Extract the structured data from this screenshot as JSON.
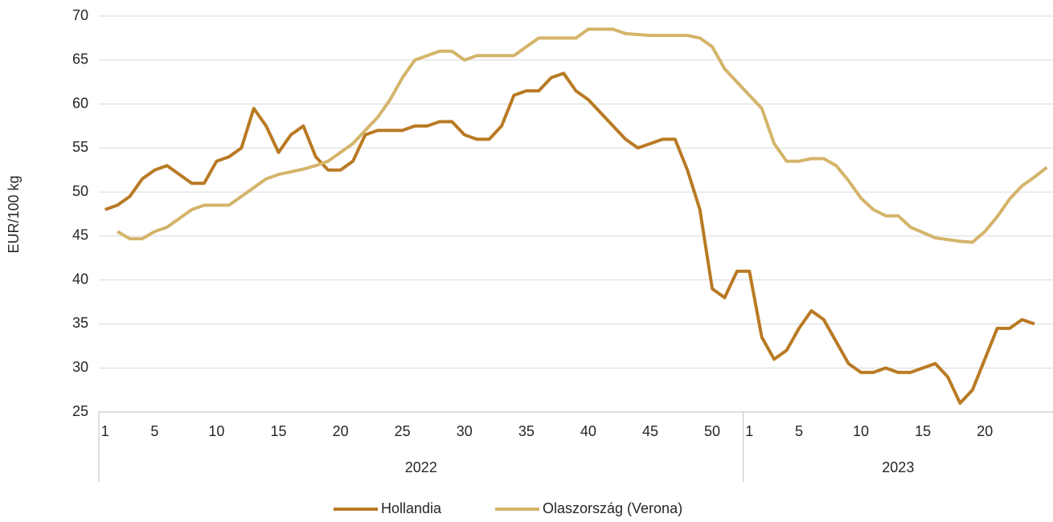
{
  "chart_data": {
    "type": "line",
    "y_label": "EUR/100 kg",
    "groups": [
      {
        "label": "2022",
        "categories": [
          "1",
          null,
          null,
          null,
          "5",
          null,
          null,
          null,
          null,
          "10",
          null,
          null,
          null,
          null,
          "15",
          null,
          null,
          null,
          null,
          "20",
          null,
          null,
          null,
          null,
          "25",
          null,
          null,
          null,
          null,
          "30",
          null,
          null,
          null,
          null,
          "35",
          null,
          null,
          null,
          null,
          "40",
          null,
          null,
          null,
          null,
          "45",
          null,
          null,
          null,
          null,
          "50",
          null,
          null
        ]
      },
      {
        "label": "2023",
        "categories": [
          "1",
          null,
          null,
          null,
          "5",
          null,
          null,
          null,
          null,
          "10",
          null,
          null,
          null,
          null,
          "15",
          null,
          null,
          null,
          null,
          "20",
          null,
          null,
          null,
          null,
          null
        ]
      }
    ],
    "series": [
      {
        "name": "Hollandia",
        "color": "#b97a24",
        "values": [
          48,
          48.5,
          49.5,
          51.5,
          52.5,
          53,
          52,
          51,
          51,
          53.5,
          54,
          55,
          59.5,
          57.5,
          54.5,
          56.5,
          57.5,
          54,
          52.5,
          52.5,
          53.5,
          56.5,
          57,
          57,
          57,
          57.5,
          57.5,
          58,
          58,
          56.5,
          56,
          56,
          57.5,
          61,
          61.5,
          61.5,
          63,
          63.5,
          61.5,
          60.5,
          59,
          57.5,
          56,
          55,
          55.5,
          56,
          56,
          52.5,
          48,
          39,
          38,
          41,
          41,
          33.5,
          31,
          32,
          34.5,
          36.5,
          35.5,
          33,
          30.5,
          29.5,
          29.5,
          30,
          29.5,
          29.5,
          30,
          30.5,
          29,
          26,
          27.5,
          31,
          34.5,
          34.5,
          35.5,
          35,
          null
        ]
      },
      {
        "name": "Olaszország (Verona)",
        "color": "#d4b46a",
        "values": [
          null,
          45.5,
          44.7,
          44.7,
          45.5,
          46,
          47,
          48,
          48.5,
          48.5,
          48.5,
          49.5,
          50.5,
          51.5,
          52,
          52.3,
          52.6,
          53,
          53.5,
          54.5,
          55.5,
          57,
          58.5,
          60.5,
          63,
          65,
          65.5,
          66,
          66,
          65,
          65.5,
          65.5,
          65.5,
          65.5,
          66.5,
          67.5,
          67.5,
          67.5,
          67.5,
          68.5,
          68.5,
          68.5,
          68,
          67.9,
          67.8,
          67.8,
          67.8,
          67.8,
          67.5,
          66.5,
          64,
          62.5,
          61,
          59.5,
          55.5,
          53.5,
          53.5,
          53.8,
          53.8,
          53,
          51.3,
          49.3,
          48,
          47.3,
          47.3,
          46,
          45.4,
          44.8,
          44.6,
          44.4,
          44.3,
          45.5,
          47.2,
          49.2,
          50.7,
          51.7,
          52.8
        ]
      }
    ],
    "ylim": [
      25,
      70
    ],
    "yticks": [
      25,
      30,
      35,
      40,
      45,
      50,
      55,
      60,
      65,
      70
    ],
    "grid": true,
    "legend": "bottom"
  }
}
